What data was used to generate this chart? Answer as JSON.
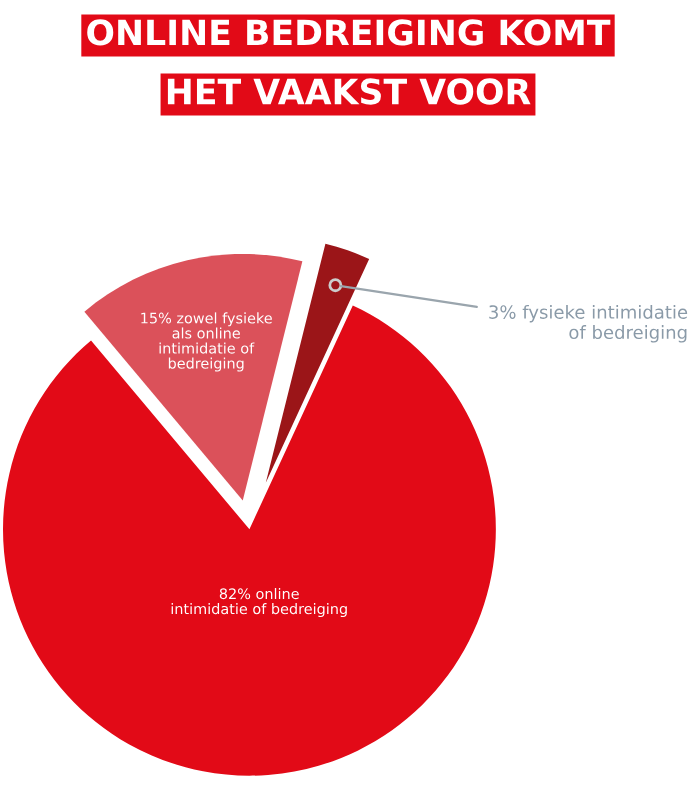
{
  "chart_data": {
    "type": "pie",
    "title": "ONLINE BEDREIGING KOMT\nHET VAAKST VOOR",
    "categories": [
      "15% zowel fysieke\nals online\nintimidatie of\nbedreiging",
      "3% fysieke intimidatie\nof bedreiging",
      "82% online\nintimidatie of bedreiging"
    ],
    "values": [
      15,
      3,
      82
    ],
    "colors": [
      "#db515a",
      "#9b1518",
      "#e20a17"
    ]
  }
}
